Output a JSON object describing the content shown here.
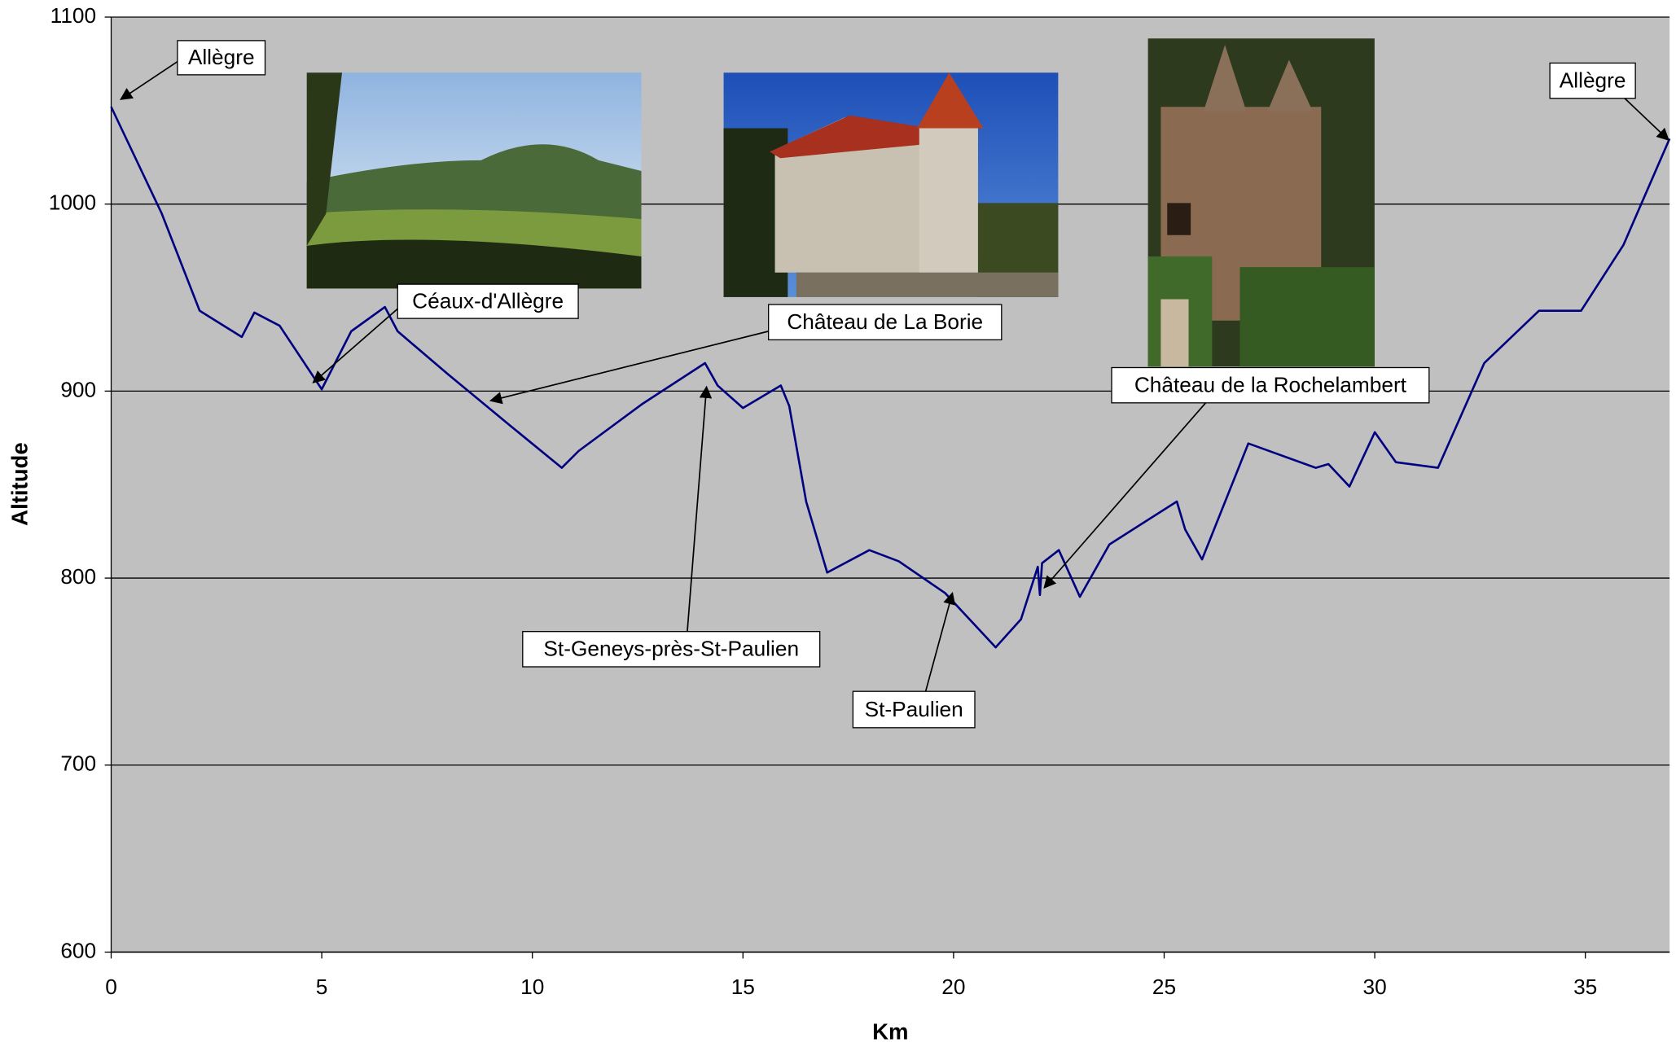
{
  "chart_data": {
    "type": "line",
    "x": [
      0,
      1.2,
      2.1,
      3.1,
      3.4,
      4.0,
      5.0,
      5.7,
      6.5,
      6.8,
      8.0,
      9.5,
      10.7,
      11.1,
      12.6,
      14.1,
      14.4,
      15.0,
      15.9,
      16.1,
      16.5,
      17.0,
      18.0,
      18.7,
      19.8,
      21.0,
      21.6,
      22.0,
      22.05,
      22.1,
      22.5,
      23.0,
      23.7,
      25.3,
      25.5,
      25.9,
      27.0,
      28.6,
      28.9,
      29.4,
      30.0,
      30.5,
      31.5,
      32.6,
      33.9,
      34.9,
      35.9,
      37.0
    ],
    "values": [
      1052,
      995,
      943,
      929,
      942,
      935,
      901,
      932,
      945,
      932,
      909,
      881,
      859,
      868,
      893,
      915,
      903,
      891,
      903,
      892,
      841,
      803,
      815,
      809,
      792,
      763,
      778,
      806,
      791,
      808,
      815,
      790,
      818,
      841,
      826,
      810,
      872,
      859,
      861,
      849,
      878,
      862,
      859,
      915,
      943,
      943,
      978,
      1035
    ],
    "color": "#000080",
    "xlabel": "Km",
    "ylabel": "Altitude",
    "xlim": [
      0,
      37
    ],
    "xticks": [
      0,
      5,
      10,
      15,
      20,
      25,
      30,
      35
    ],
    "ylim": [
      600,
      1100
    ],
    "yticks": [
      600,
      700,
      800,
      900,
      1000,
      1100
    ],
    "grid": true,
    "annotations": [
      "Allègre",
      "Céaux-d'Allègre",
      "Château de La Borie",
      "St-Geneys-près-St-Paulien",
      "St-Paulien",
      "Château de la Rochelambert",
      "Allègre"
    ]
  }
}
